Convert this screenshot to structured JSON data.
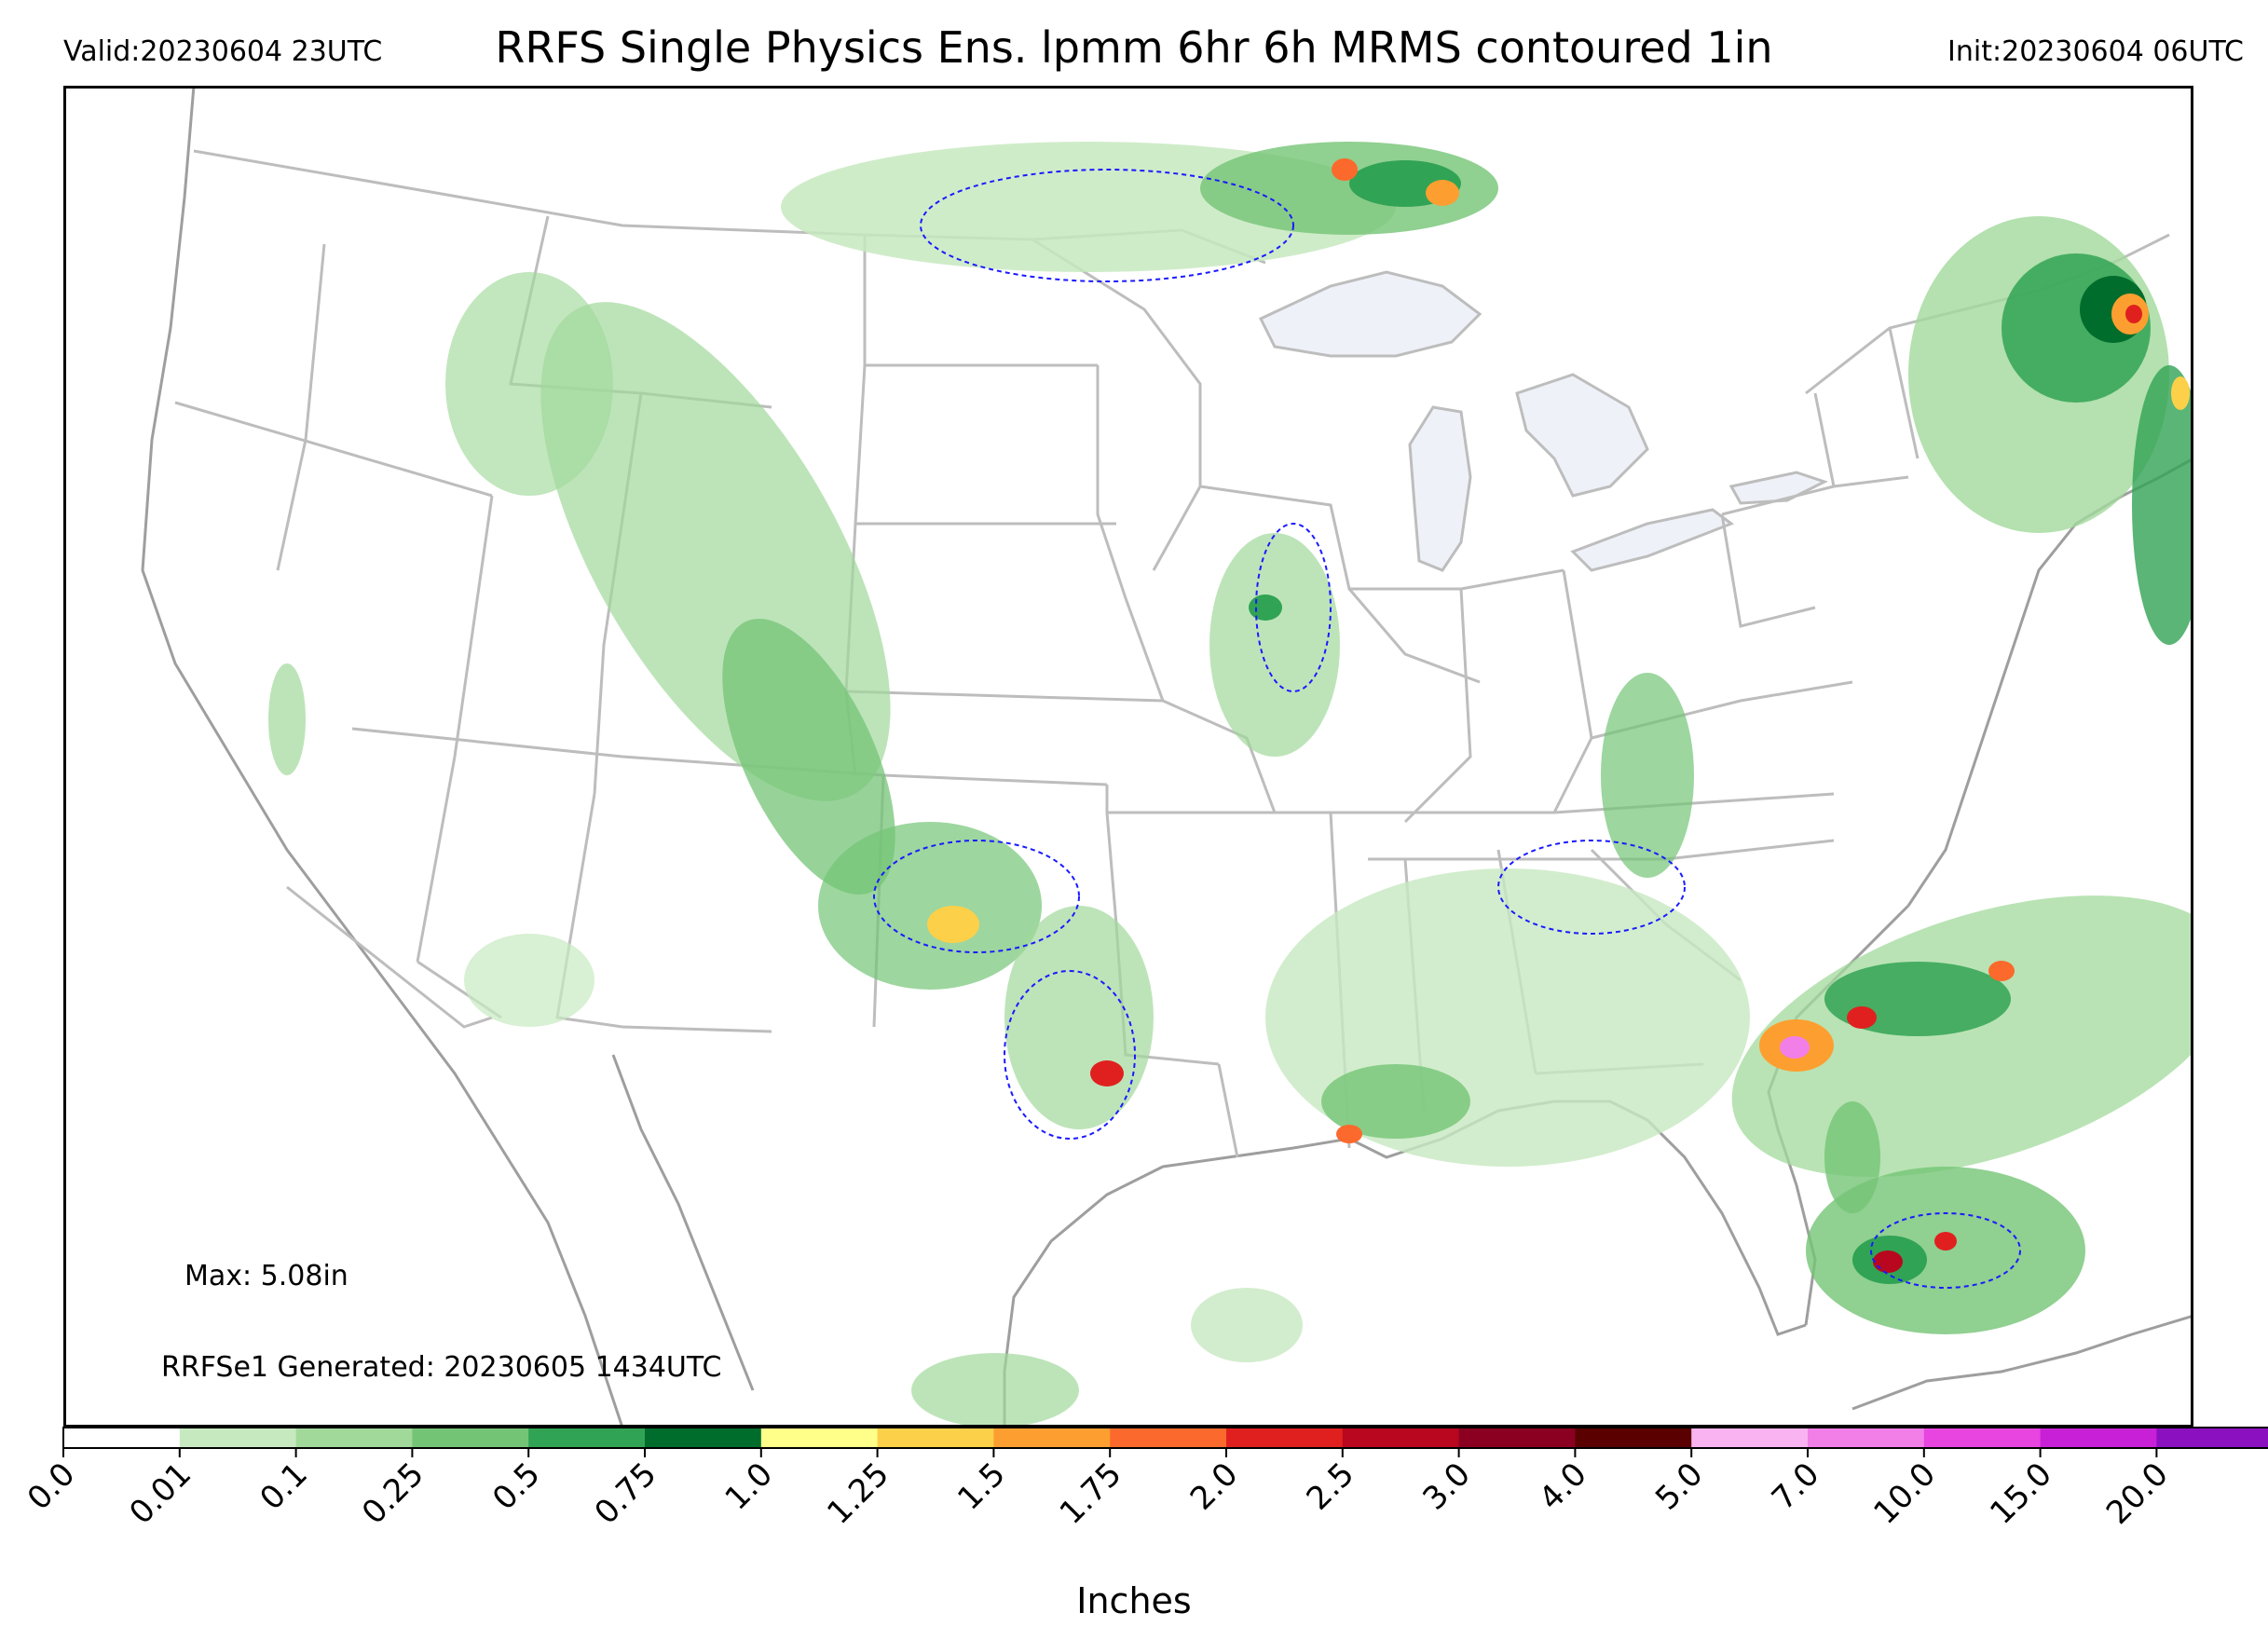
{
  "header": {
    "valid": "Valid:20230604 23UTC",
    "title": "RRFS Single Physics Ens. lpmm 6hr 6h MRMS contoured 1in",
    "init": "Init:20230604 06UTC"
  },
  "annotations": {
    "max": "Max: 5.08in",
    "generated": "RRFSe1 Generated: 20230605 1434UTC"
  },
  "colorbar": {
    "label": "Inches",
    "ticks": [
      "0.0",
      "0.01",
      "0.1",
      "0.25",
      "0.5",
      "0.75",
      "1.0",
      "1.25",
      "1.5",
      "1.75",
      "2.0",
      "2.5",
      "3.0",
      "4.0",
      "5.0",
      "7.0",
      "10.0",
      "15.0",
      "20.0"
    ],
    "colors": [
      "#ffffff",
      "#c7e9c0",
      "#a1d99b",
      "#74c476",
      "#31a354",
      "#006d2c",
      "#ffff8a",
      "#fdd049",
      "#fd9f30",
      "#fb6a2c",
      "#e0201f",
      "#b8071f",
      "#8b0020",
      "#5a0000",
      "#f8b3f0",
      "#f27ee8",
      "#e844e0",
      "#c820d6",
      "#8b10c0"
    ],
    "extend": "max"
  },
  "map": {
    "background": "#ffffff",
    "lake_fill": "#eef2f8",
    "border_color": "#bdbdbd",
    "coast_color": "#9e9e9e",
    "contour_color": "#1a1aff",
    "contour_value": "1in"
  }
}
